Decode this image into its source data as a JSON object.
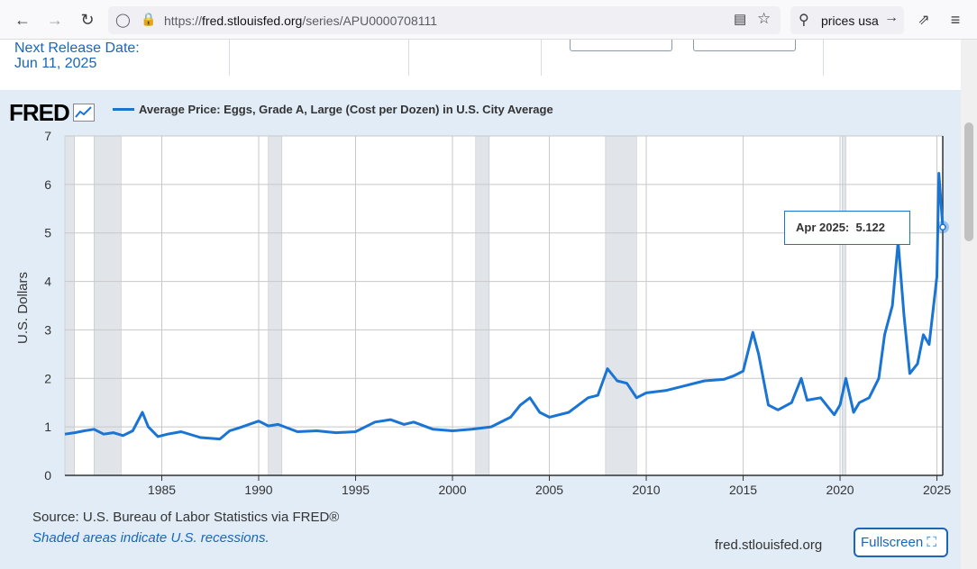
{
  "browser": {
    "url_prefix": "https://",
    "url_domain": "fred.stlouisfed.org",
    "url_path": "/series/APU0000708111",
    "search_text": "prices usa"
  },
  "release": {
    "label": "Next Release Date:",
    "date": "Jun 11, 2025"
  },
  "graph": {
    "logo": "FRED",
    "series_title": "Average Price: Eggs, Grade A, Large (Cost per Dozen) in U.S. City Average",
    "tooltip_date": "Apr 2025:",
    "tooltip_value": "5.122",
    "source": "Source: U.S. Bureau of Labor Statistics via FRED®",
    "recession_note": "Shaded areas indicate U.S. recessions.",
    "site": "fred.stlouisfed.org",
    "fullscreen_label": "Fullscreen"
  },
  "chart_data": {
    "type": "line",
    "ylabel": "U.S. Dollars",
    "ylim": [
      0,
      7
    ],
    "xlim": [
      1980,
      2025.3
    ],
    "y_ticks": [
      0,
      1,
      2,
      3,
      4,
      5,
      6,
      7
    ],
    "x_ticks": [
      1985,
      1990,
      1995,
      2000,
      2005,
      2010,
      2015,
      2020,
      2025
    ],
    "recessions": [
      [
        1980.0,
        1980.5
      ],
      [
        1981.5,
        1982.9
      ],
      [
        1990.5,
        1991.2
      ],
      [
        2001.2,
        2001.9
      ],
      [
        2007.9,
        2009.5
      ],
      [
        2020.1,
        2020.3
      ]
    ],
    "series": [
      {
        "color": "#1a74d4",
        "x": [
          1980.0,
          1980.5,
          1981.0,
          1981.5,
          1982.0,
          1982.5,
          1983.0,
          1983.5,
          1984.0,
          1984.3,
          1984.8,
          1985.3,
          1986.0,
          1987.0,
          1988.0,
          1988.5,
          1989.0,
          1990.0,
          1990.5,
          1991.0,
          1992.0,
          1993.0,
          1994.0,
          1995.0,
          1996.0,
          1996.8,
          1997.5,
          1998.0,
          1999.0,
          2000.0,
          2001.0,
          2002.0,
          2003.0,
          2003.5,
          2004.0,
          2004.5,
          2005.0,
          2006.0,
          2007.0,
          2007.5,
          2008.0,
          2008.5,
          2009.0,
          2009.5,
          2010.0,
          2011.0,
          2012.0,
          2013.0,
          2014.0,
          2014.5,
          2015.0,
          2015.5,
          2015.8,
          2016.3,
          2016.8,
          2017.5,
          2018.0,
          2018.3,
          2019.0,
          2019.7,
          2020.0,
          2020.3,
          2020.7,
          2021.0,
          2021.5,
          2022.0,
          2022.3,
          2022.7,
          2023.0,
          2023.3,
          2023.6,
          2024.0,
          2024.3,
          2024.6,
          2024.9,
          2025.0,
          2025.1,
          2025.3
        ],
        "y": [
          0.85,
          0.88,
          0.92,
          0.95,
          0.85,
          0.88,
          0.82,
          0.92,
          1.3,
          1.0,
          0.8,
          0.85,
          0.9,
          0.78,
          0.75,
          0.92,
          0.98,
          1.12,
          1.02,
          1.05,
          0.9,
          0.92,
          0.88,
          0.9,
          1.1,
          1.15,
          1.05,
          1.1,
          0.95,
          0.92,
          0.95,
          1.0,
          1.2,
          1.45,
          1.6,
          1.3,
          1.2,
          1.3,
          1.6,
          1.65,
          2.2,
          1.95,
          1.9,
          1.6,
          1.7,
          1.75,
          1.85,
          1.95,
          1.98,
          2.05,
          2.15,
          2.95,
          2.5,
          1.45,
          1.35,
          1.5,
          2.0,
          1.55,
          1.6,
          1.25,
          1.45,
          2.0,
          1.3,
          1.5,
          1.6,
          2.0,
          2.9,
          3.5,
          4.82,
          3.3,
          2.1,
          2.3,
          2.9,
          2.7,
          3.75,
          4.1,
          6.23,
          5.12
        ]
      }
    ]
  }
}
